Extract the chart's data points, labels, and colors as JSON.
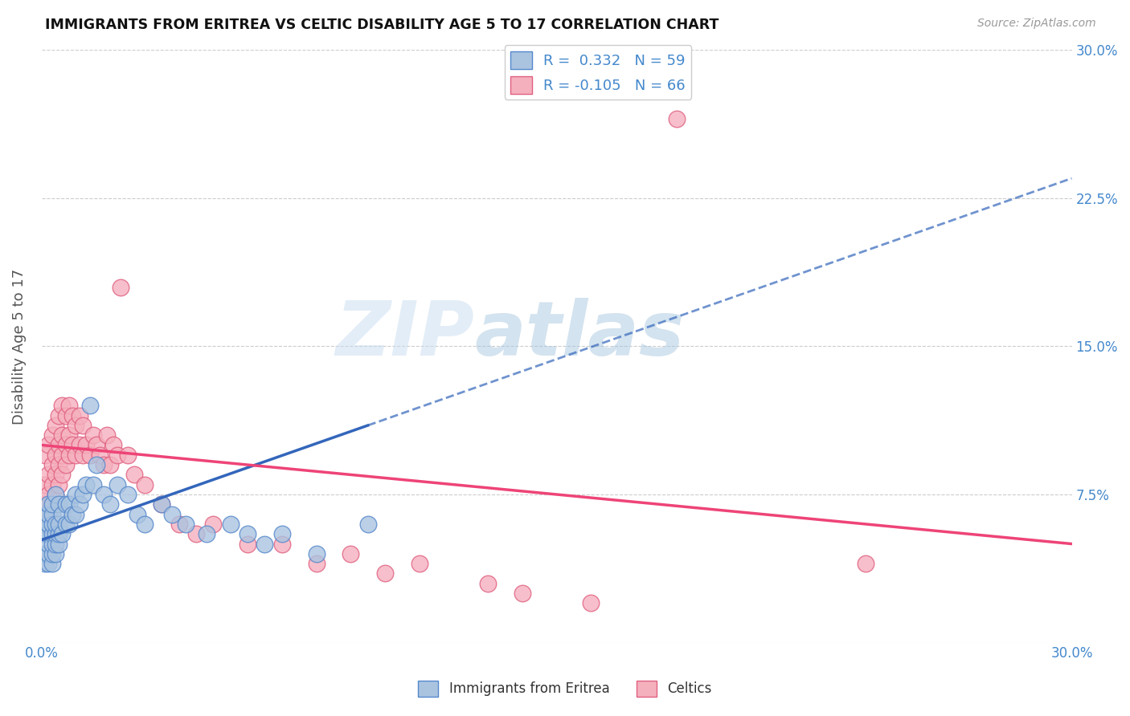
{
  "title": "IMMIGRANTS FROM ERITREA VS CELTIC DISABILITY AGE 5 TO 17 CORRELATION CHART",
  "source": "Source: ZipAtlas.com",
  "ylabel": "Disability Age 5 to 17",
  "xmin": 0.0,
  "xmax": 0.3,
  "ymin": 0.0,
  "ymax": 0.3,
  "blue_color": "#aac4e0",
  "blue_edge": "#5588cc",
  "pink_color": "#f5b0be",
  "pink_edge": "#e06080",
  "trend_blue": "#3366bb",
  "trend_pink": "#ee4477",
  "legend_blue_label": "R =  0.332   N = 59",
  "legend_pink_label": "R = -0.105   N = 66",
  "legend_label_blue": "Immigrants from Eritrea",
  "legend_label_pink": "Celtics",
  "watermark_zip": "ZIP",
  "watermark_atlas": "atlas",
  "axis_color": "#4488cc",
  "label_color": "#555555",
  "grid_color": "#cccccc",
  "background_color": "#ffffff",
  "blue_x": [
    0.001,
    0.001,
    0.001,
    0.001,
    0.001,
    0.002,
    0.002,
    0.002,
    0.002,
    0.002,
    0.002,
    0.002,
    0.003,
    0.003,
    0.003,
    0.003,
    0.003,
    0.003,
    0.003,
    0.004,
    0.004,
    0.004,
    0.004,
    0.004,
    0.005,
    0.005,
    0.005,
    0.005,
    0.006,
    0.006,
    0.007,
    0.007,
    0.008,
    0.008,
    0.009,
    0.01,
    0.01,
    0.011,
    0.012,
    0.013,
    0.014,
    0.015,
    0.016,
    0.018,
    0.02,
    0.022,
    0.025,
    0.028,
    0.03,
    0.035,
    0.038,
    0.042,
    0.048,
    0.055,
    0.06,
    0.065,
    0.07,
    0.08,
    0.095
  ],
  "blue_y": [
    0.04,
    0.045,
    0.055,
    0.06,
    0.065,
    0.04,
    0.045,
    0.05,
    0.055,
    0.06,
    0.065,
    0.07,
    0.04,
    0.045,
    0.05,
    0.055,
    0.06,
    0.065,
    0.07,
    0.045,
    0.05,
    0.055,
    0.06,
    0.075,
    0.05,
    0.055,
    0.06,
    0.07,
    0.055,
    0.065,
    0.06,
    0.07,
    0.06,
    0.07,
    0.065,
    0.065,
    0.075,
    0.07,
    0.075,
    0.08,
    0.12,
    0.08,
    0.09,
    0.075,
    0.07,
    0.08,
    0.075,
    0.065,
    0.06,
    0.07,
    0.065,
    0.06,
    0.055,
    0.06,
    0.055,
    0.05,
    0.055,
    0.045,
    0.06
  ],
  "pink_x": [
    0.001,
    0.001,
    0.001,
    0.002,
    0.002,
    0.002,
    0.002,
    0.003,
    0.003,
    0.003,
    0.003,
    0.004,
    0.004,
    0.004,
    0.004,
    0.005,
    0.005,
    0.005,
    0.005,
    0.006,
    0.006,
    0.006,
    0.006,
    0.007,
    0.007,
    0.007,
    0.008,
    0.008,
    0.008,
    0.009,
    0.009,
    0.01,
    0.01,
    0.011,
    0.011,
    0.012,
    0.012,
    0.013,
    0.014,
    0.015,
    0.016,
    0.017,
    0.018,
    0.019,
    0.02,
    0.021,
    0.022,
    0.023,
    0.025,
    0.027,
    0.03,
    0.035,
    0.04,
    0.045,
    0.05,
    0.06,
    0.07,
    0.08,
    0.09,
    0.1,
    0.11,
    0.13,
    0.14,
    0.16,
    0.185,
    0.24
  ],
  "pink_y": [
    0.07,
    0.08,
    0.095,
    0.065,
    0.075,
    0.085,
    0.1,
    0.07,
    0.08,
    0.09,
    0.105,
    0.075,
    0.085,
    0.095,
    0.11,
    0.08,
    0.09,
    0.1,
    0.115,
    0.085,
    0.095,
    0.105,
    0.12,
    0.09,
    0.1,
    0.115,
    0.095,
    0.105,
    0.12,
    0.1,
    0.115,
    0.095,
    0.11,
    0.1,
    0.115,
    0.095,
    0.11,
    0.1,
    0.095,
    0.105,
    0.1,
    0.095,
    0.09,
    0.105,
    0.09,
    0.1,
    0.095,
    0.18,
    0.095,
    0.085,
    0.08,
    0.07,
    0.06,
    0.055,
    0.06,
    0.05,
    0.05,
    0.04,
    0.045,
    0.035,
    0.04,
    0.03,
    0.025,
    0.02,
    0.265,
    0.04
  ],
  "blue_trend_x0": 0.0,
  "blue_trend_y0": 0.052,
  "blue_trend_x1": 0.3,
  "blue_trend_y1": 0.235,
  "pink_trend_x0": 0.0,
  "pink_trend_y0": 0.1,
  "pink_trend_x1": 0.3,
  "pink_trend_y1": 0.05
}
